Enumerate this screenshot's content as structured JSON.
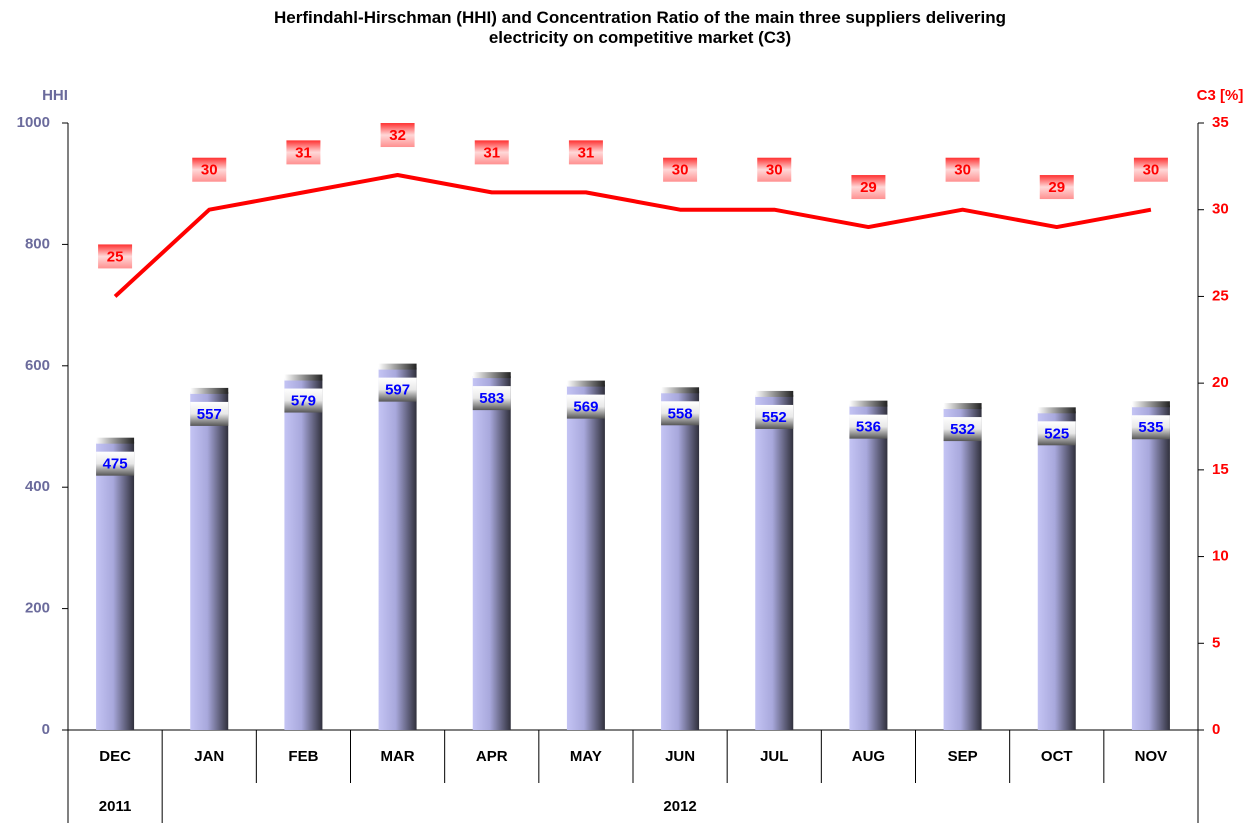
{
  "chart_data": {
    "type": "bar-line",
    "title": "Herfindahl-Hirschman (HHI) and Concentration Ratio of the main three suppliers delivering electricity on competitive market (C3)",
    "ylabel": "HHI",
    "y2label": "C3 [%]",
    "categories": [
      "DEC",
      "JAN",
      "FEB",
      "MAR",
      "APR",
      "MAY",
      "JUN",
      "JUL",
      "AUG",
      "SEP",
      "OCT",
      "NOV"
    ],
    "category_groups": [
      {
        "label": "2011",
        "count": 1
      },
      {
        "label": "2012",
        "count": 11
      }
    ],
    "series": [
      {
        "name": "HHI",
        "type": "bar",
        "color": "#b8b8ec",
        "label_color": "#0000ff",
        "values": [
          475,
          557,
          579,
          597,
          583,
          569,
          558,
          552,
          536,
          532,
          525,
          535
        ]
      },
      {
        "name": "C3",
        "type": "line",
        "axis": "y2",
        "color": "#ff0000",
        "label_color": "#ff0000",
        "values": [
          25,
          30,
          31,
          32,
          31,
          31,
          30,
          30,
          29,
          30,
          29,
          30
        ]
      }
    ],
    "ylim": [
      0,
      1000
    ],
    "yticks": [
      0,
      200,
      400,
      600,
      800,
      1000
    ],
    "ycolor": "#6b6b9c",
    "y2lim": [
      0,
      35
    ],
    "y2ticks": [
      0,
      5,
      10,
      15,
      20,
      25,
      30,
      35
    ],
    "y2color": "#ff0000",
    "grid": false
  }
}
